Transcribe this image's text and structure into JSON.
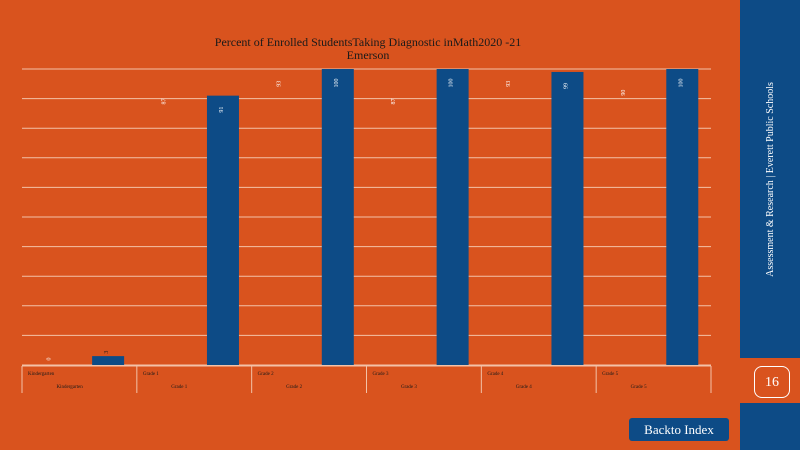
{
  "chart_data": {
    "type": "bar",
    "title_line1": "Percent of Enrolled StudentsTaking Diagnostic inMath2020 -21",
    "title_line2": "Emerson",
    "categories_row1": [
      "Kindergarten",
      "Grade 1",
      "Grade 2",
      "Grade 3",
      "Grade 4",
      "Grade 5"
    ],
    "categories_row2": [
      "Kindergarten",
      "Grade 1",
      "Grade 2",
      "Grade 3",
      "Grade 4",
      "Grade 5"
    ],
    "series": [
      {
        "values": [
          0,
          87,
          93,
          87,
          93,
          90
        ],
        "labels": [
          "0",
          "87",
          "93",
          "87",
          "93",
          "90"
        ]
      },
      {
        "values": [
          3,
          91,
          100,
          100,
          99,
          100
        ],
        "labels": [
          "3",
          "91",
          "100",
          "100",
          "99",
          "100"
        ]
      }
    ],
    "ylim": [
      0,
      100
    ],
    "grid": true,
    "colors": {
      "background": "#d9531e",
      "bar": "#0d4b86",
      "grid": "#f3c2a8",
      "label": "#ffffff"
    }
  },
  "sidebar": {
    "text": "Assessment & Research | Everett Public Schools",
    "page_number": "16"
  },
  "nav": {
    "back_label": "Backto Index"
  }
}
